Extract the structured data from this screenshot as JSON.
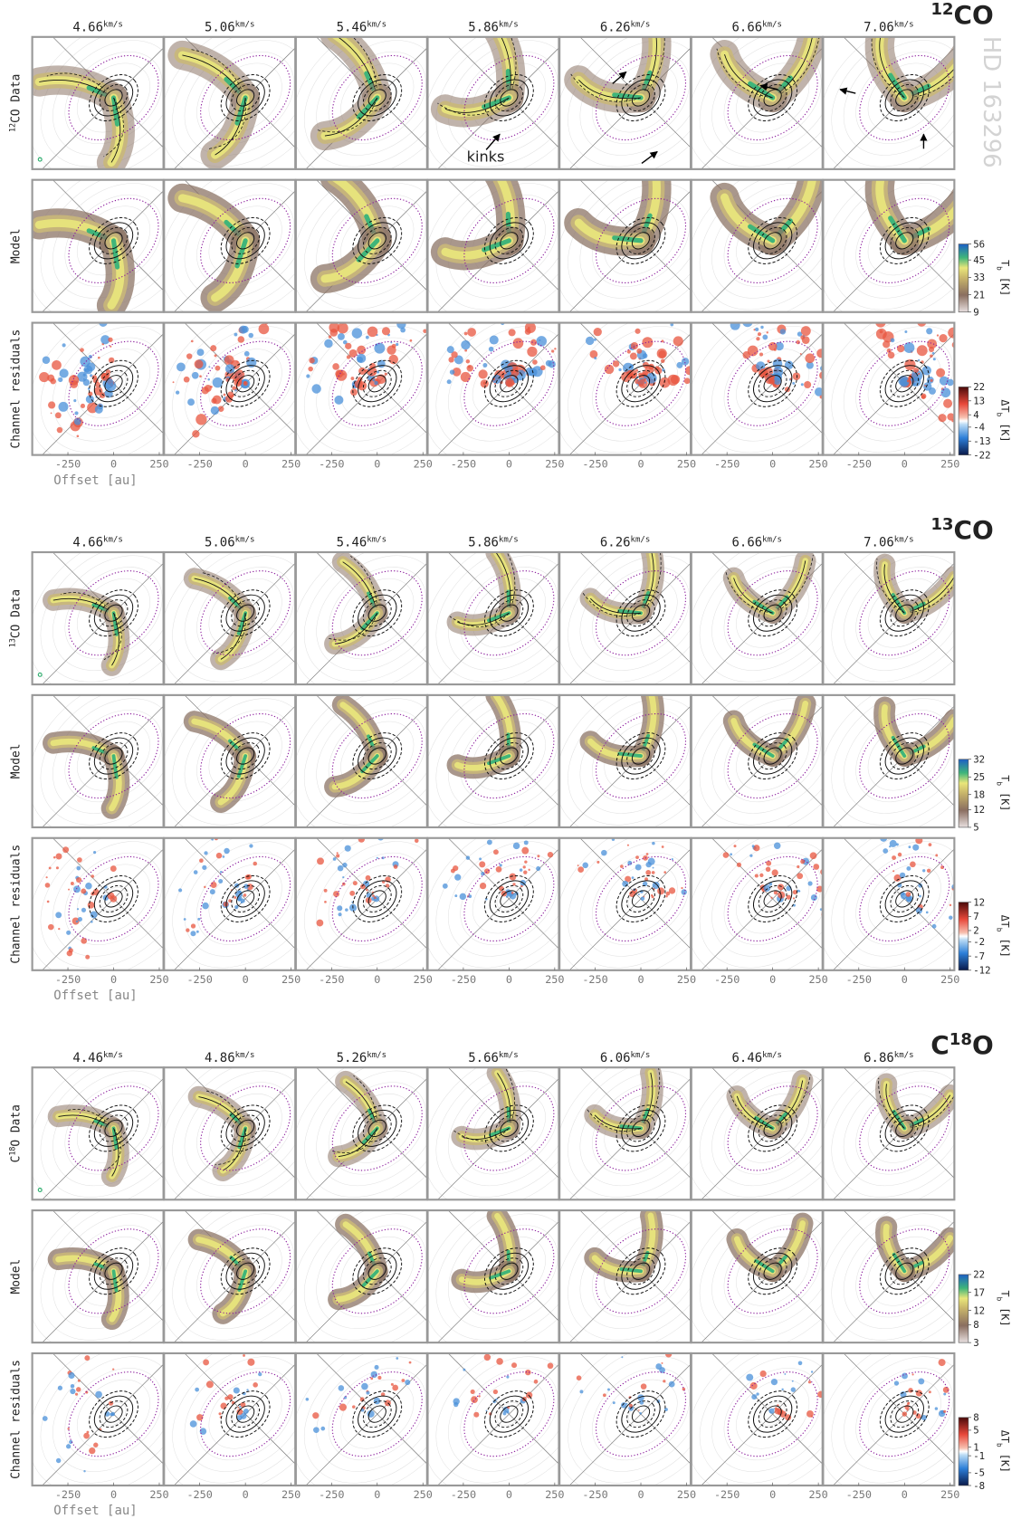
{
  "object_name": "HD 163296",
  "velocity_unit": "km/s",
  "x_axis": {
    "label": "Offset [au]",
    "ticks": [
      -250,
      0,
      250
    ]
  },
  "sections": [
    {
      "molecule": [
        {
          "text": "12",
          "sup": true
        },
        {
          "text": "CO"
        }
      ],
      "velocities": [
        4.66,
        5.06,
        5.46,
        5.86,
        6.26,
        6.66,
        7.06
      ],
      "rows": [
        {
          "label": [
            {
              "text": "12",
              "sup": true
            },
            {
              "text": "CO Data"
            }
          ]
        },
        {
          "label": [
            {
              "text": "Model"
            }
          ]
        },
        {
          "label": [
            {
              "text": "Channel residuals"
            }
          ]
        }
      ],
      "model_colorbar": {
        "label": [
          {
            "text": "T"
          },
          {
            "text": "b",
            "sub": true
          },
          {
            "text": " [K]"
          }
        ],
        "ticks": [
          56,
          45,
          33,
          21,
          9
        ]
      },
      "residual_colorbar": {
        "label": [
          {
            "text": "ΔT"
          },
          {
            "text": "b",
            "sub": true
          },
          {
            "text": " [K]"
          }
        ],
        "ticks": [
          22,
          13,
          4,
          -4,
          -13,
          -22
        ]
      },
      "annotation": "kinks"
    },
    {
      "molecule": [
        {
          "text": "13",
          "sup": true
        },
        {
          "text": "CO"
        }
      ],
      "velocities": [
        4.66,
        5.06,
        5.46,
        5.86,
        6.26,
        6.66,
        7.06
      ],
      "rows": [
        {
          "label": [
            {
              "text": "13",
              "sup": true
            },
            {
              "text": "CO Data"
            }
          ]
        },
        {
          "label": [
            {
              "text": "Model"
            }
          ]
        },
        {
          "label": [
            {
              "text": "Channel residuals"
            }
          ]
        }
      ],
      "model_colorbar": {
        "label": [
          {
            "text": "T"
          },
          {
            "text": "b",
            "sub": true
          },
          {
            "text": " [K]"
          }
        ],
        "ticks": [
          32,
          25,
          18,
          12,
          5
        ]
      },
      "residual_colorbar": {
        "label": [
          {
            "text": "ΔT"
          },
          {
            "text": "b",
            "sub": true
          },
          {
            "text": " [K]"
          }
        ],
        "ticks": [
          12,
          7,
          2,
          -2,
          -7,
          -12
        ]
      }
    },
    {
      "molecule": [
        {
          "text": "C"
        },
        {
          "text": "18",
          "sup": true
        },
        {
          "text": "O"
        }
      ],
      "velocities": [
        4.46,
        4.86,
        5.26,
        5.66,
        6.06,
        6.46,
        6.86
      ],
      "rows": [
        {
          "label": [
            {
              "text": "C"
            },
            {
              "text": "18",
              "sup": true
            },
            {
              "text": "O Data"
            }
          ]
        },
        {
          "label": [
            {
              "text": "Model"
            }
          ]
        },
        {
          "label": [
            {
              "text": "Channel residuals"
            }
          ]
        }
      ],
      "model_colorbar": {
        "label": [
          {
            "text": "T"
          },
          {
            "text": "b",
            "sub": true
          },
          {
            "text": " [K]"
          }
        ],
        "ticks": [
          22,
          17,
          12,
          8,
          3
        ]
      },
      "residual_colorbar": {
        "label": [
          {
            "text": "ΔT"
          },
          {
            "text": "b",
            "sub": true
          },
          {
            "text": " [K]"
          }
        ],
        "ticks": [
          8,
          5,
          1,
          -1,
          -5,
          -8
        ]
      }
    }
  ]
}
